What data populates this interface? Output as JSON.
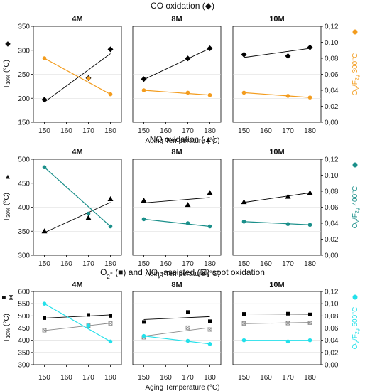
{
  "chart_data": [
    {
      "type": "scatter",
      "title": "CO oxidation (◆)",
      "ylabel": "T10%",
      "ylabel_sub": "10%",
      "ylabel_base": "T",
      "ylabel_marker": "◆",
      "y2label": "Oᵥ/F₂g 300°C",
      "y2label_parts": [
        "O",
        "V",
        "/F",
        "2g",
        " 300°C"
      ],
      "y2color": "#f39c1e",
      "xlabel": "Aging Temperature (°C)",
      "xlim": [
        145,
        185
      ],
      "xticks": [
        150,
        160,
        170,
        180
      ],
      "ylim": [
        150,
        350
      ],
      "yticks": [
        150,
        200,
        250,
        300,
        350
      ],
      "y2lim": [
        0,
        0.12
      ],
      "y2ticks": [
        "0,00",
        "0,02",
        "0,04",
        "0,06",
        "0,08",
        "0,10",
        "0,12"
      ],
      "panels": [
        {
          "name": "4M",
          "x": [
            150,
            170,
            180
          ],
          "series": [
            {
              "axis": "left",
              "marker": "diamond",
              "color": "#000000",
              "values": [
                197,
                242,
                302
              ],
              "trend": [
                192,
                293
              ]
            },
            {
              "axis": "right",
              "marker": "circle",
              "color": "#f39c1e",
              "values": [
                0.08,
                0.055,
                0.035
              ],
              "trend": [
                0.08,
                0.035
              ]
            }
          ]
        },
        {
          "name": "8M",
          "x": [
            150,
            170,
            180
          ],
          "series": [
            {
              "axis": "left",
              "marker": "diamond",
              "color": "#000000",
              "values": [
                240,
                283,
                304
              ],
              "trend": [
                239,
                304
              ]
            },
            {
              "axis": "right",
              "marker": "circle",
              "color": "#f39c1e",
              "values": [
                0.04,
                0.037,
                0.034
              ],
              "trend": [
                0.04,
                0.034
              ]
            }
          ]
        },
        {
          "name": "10M",
          "x": [
            150,
            170,
            180
          ],
          "series": [
            {
              "axis": "left",
              "marker": "diamond",
              "color": "#000000",
              "values": [
                291,
                288,
                306
              ],
              "trend": [
                285,
                304
              ]
            },
            {
              "axis": "right",
              "marker": "circle",
              "color": "#f39c1e",
              "values": [
                0.037,
                0.033,
                0.031
              ],
              "trend": [
                0.037,
                0.031
              ]
            }
          ]
        }
      ]
    },
    {
      "type": "scatter",
      "title": "NO oxidation  (▲)",
      "ylabel": "T30%",
      "ylabel_sub": "30%",
      "ylabel_base": "T",
      "ylabel_marker": "▲",
      "y2label": "Oᵥ/F₂g 400°C",
      "y2label_parts": [
        "O",
        "V",
        "/F",
        "2g",
        " 400°C"
      ],
      "y2color": "#1a8f8a",
      "xlabel": "Aging Temperature (°C)",
      "xlim": [
        145,
        185
      ],
      "xticks": [
        150,
        160,
        170,
        180
      ],
      "ylim": [
        300,
        500
      ],
      "yticks": [
        300,
        350,
        400,
        450,
        500
      ],
      "y2lim": [
        0,
        0.12
      ],
      "y2ticks": [
        "0,00",
        "0,02",
        "0,04",
        "0,06",
        "0,08",
        "0,10",
        "0,12"
      ],
      "panels": [
        {
          "name": "4M",
          "x": [
            150,
            170,
            180
          ],
          "series": [
            {
              "axis": "left",
              "marker": "triangle",
              "color": "#000000",
              "values": [
                350,
                378,
                417
              ],
              "trend": [
                347,
                410
              ]
            },
            {
              "axis": "right",
              "marker": "circle",
              "color": "#1a8f8a",
              "values": [
                0.11,
                0.052,
                0.036
              ],
              "trend": [
                0.11,
                0.036
              ]
            }
          ]
        },
        {
          "name": "8M",
          "x": [
            150,
            170,
            180
          ],
          "series": [
            {
              "axis": "left",
              "marker": "triangle",
              "color": "#000000",
              "values": [
                414,
                405,
                430
              ],
              "trend": [
                409,
                420
              ]
            },
            {
              "axis": "right",
              "marker": "circle",
              "color": "#1a8f8a",
              "values": [
                0.045,
                0.04,
                0.036
              ],
              "trend": [
                0.045,
                0.036
              ]
            }
          ]
        },
        {
          "name": "10M",
          "x": [
            150,
            170,
            180
          ],
          "series": [
            {
              "axis": "left",
              "marker": "triangle",
              "color": "#000000",
              "values": [
                411,
                422,
                430
              ],
              "trend": [
                410,
                430
              ]
            },
            {
              "axis": "right",
              "marker": "circle",
              "color": "#1a8f8a",
              "values": [
                0.042,
                0.039,
                0.038
              ],
              "trend": [
                0.042,
                0.038
              ]
            }
          ]
        }
      ]
    },
    {
      "type": "scatter",
      "title_parts": [
        "O",
        "2",
        "- (■) and NO",
        "x",
        "-assisted (⊠) soot oxidation"
      ],
      "ylabel": "T10%",
      "ylabel_sub": "10%",
      "ylabel_base": "T",
      "ylabel_marker": "■ ⊠",
      "y2label": "Oᵥ/F₂g 500°C",
      "y2label_parts": [
        "O",
        "V",
        "/F",
        "2g",
        " 500°C"
      ],
      "y2color": "#23e0ea",
      "xlabel": "Aging Temperature (°C)",
      "xlim": [
        145,
        185
      ],
      "xticks": [
        150,
        160,
        170,
        180
      ],
      "ylim": [
        300,
        600
      ],
      "yticks": [
        300,
        350,
        400,
        450,
        500,
        550,
        600
      ],
      "y2lim": [
        0,
        0.12
      ],
      "y2ticks": [
        "0,00",
        "0,02",
        "0,04",
        "0,06",
        "0,08",
        "0,10",
        "0,12"
      ],
      "panels": [
        {
          "name": "4M",
          "x": [
            150,
            170,
            180
          ],
          "series": [
            {
              "axis": "left",
              "marker": "square",
              "color": "#000000",
              "values": [
                491,
                504,
                500
              ],
              "trend": [
                491,
                504
              ]
            },
            {
              "axis": "left",
              "marker": "xsquare",
              "color": "#888888",
              "values": [
                441,
                460,
                469
              ],
              "trend": [
                440,
                470
              ]
            },
            {
              "axis": "right",
              "marker": "circle",
              "color": "#23e0ea",
              "values": [
                0.1,
                0.064,
                0.038
              ],
              "trend": [
                0.1,
                0.038
              ]
            }
          ]
        },
        {
          "name": "8M",
          "x": [
            150,
            170,
            180
          ],
          "series": [
            {
              "axis": "left",
              "marker": "square",
              "color": "#000000",
              "values": [
                475,
                516,
                478
              ],
              "trend": [
                485,
                497
              ]
            },
            {
              "axis": "left",
              "marker": "xsquare",
              "color": "#888888",
              "values": [
                412,
                452,
                444
              ],
              "trend": [
                417,
                452
              ]
            },
            {
              "axis": "right",
              "marker": "circle",
              "color": "#23e0ea",
              "values": [
                0.047,
                0.039,
                0.034
              ],
              "trend": [
                0.047,
                0.034
              ]
            }
          ]
        },
        {
          "name": "10M",
          "x": [
            150,
            170,
            180
          ],
          "series": [
            {
              "axis": "left",
              "marker": "square",
              "color": "#000000",
              "values": [
                508,
                509,
                506
              ],
              "trend": [
                508,
                507
              ]
            },
            {
              "axis": "left",
              "marker": "xsquare",
              "color": "#888888",
              "values": [
                469,
                470,
                472
              ],
              "trend": [
                468,
                473
              ]
            },
            {
              "axis": "right",
              "marker": "circle",
              "color": "#23e0ea",
              "values": [
                0.04,
                0.038,
                0.04
              ],
              "trend": [
                0.04,
                0.04
              ]
            }
          ]
        }
      ]
    }
  ]
}
